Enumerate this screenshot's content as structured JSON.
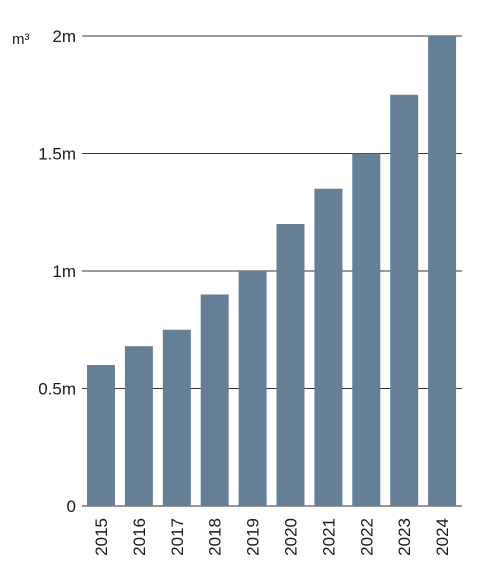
{
  "chart_data": {
    "type": "bar",
    "title": "",
    "xlabel": "",
    "ylabel": "",
    "unit": "m³",
    "categories": [
      "2015",
      "2016",
      "2017",
      "2018",
      "2019",
      "2020",
      "2021",
      "2022",
      "2023",
      "2024"
    ],
    "values": [
      0.6,
      0.68,
      0.75,
      0.9,
      1.0,
      1.2,
      1.35,
      1.5,
      1.75,
      2.0
    ],
    "ylim": [
      0,
      2
    ],
    "yticks": [
      0,
      0.5,
      1,
      1.5,
      2
    ],
    "ytick_labels": [
      "0",
      "0.5m",
      "1m",
      "1.5m",
      "2m"
    ],
    "grid": true,
    "bar_color": "#647f96"
  }
}
